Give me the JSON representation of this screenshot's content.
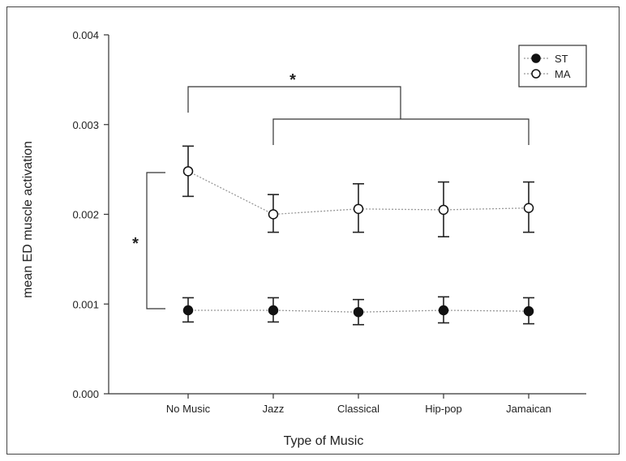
{
  "chart_data": {
    "type": "line",
    "xlabel": "Type of Music",
    "ylabel": "mean ED muscle activation",
    "categories": [
      "No Music",
      "Jazz",
      "Classical",
      "Hip-pop",
      "Jamaican"
    ],
    "ylim": [
      0,
      0.004
    ],
    "yticks": [
      "0.000",
      "0.001",
      "0.002",
      "0.003",
      "0.004"
    ],
    "grid": false,
    "legend_position": "top-right",
    "series": [
      {
        "name": "ST",
        "marker": "filled-circle",
        "values": [
          0.00093,
          0.00093,
          0.00091,
          0.00093,
          0.00092
        ],
        "err_low": [
          0.0008,
          0.0008,
          0.00077,
          0.00079,
          0.00078
        ],
        "err_high": [
          0.00107,
          0.00107,
          0.00105,
          0.00108,
          0.00107
        ]
      },
      {
        "name": "MA",
        "marker": "open-circle",
        "values": [
          0.00248,
          0.002,
          0.00206,
          0.00205,
          0.00207
        ],
        "err_low": [
          0.0022,
          0.0018,
          0.0018,
          0.00175,
          0.0018
        ],
        "err_high": [
          0.00276,
          0.00222,
          0.00234,
          0.00236,
          0.00236
        ]
      }
    ],
    "annotations": [
      "*",
      "*"
    ]
  }
}
